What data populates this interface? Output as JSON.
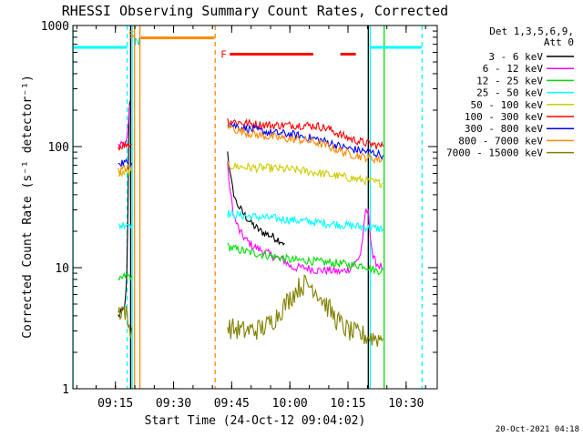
{
  "chart_data": {
    "type": "line",
    "title": "RHESSI Observing Summary Count Rates, Corrected",
    "xlabel": "Start Time (24-Oct-12 09:04:02)",
    "ylabel": "Corrected Count Rate (s⁻¹ detector⁻¹)",
    "yscale": "log",
    "xlim_minutes_after_start": [
      0,
      94
    ],
    "ylim": [
      1,
      1000
    ],
    "x_ticks": [
      {
        "label": "09:15",
        "t": 10.97
      },
      {
        "label": "09:30",
        "t": 25.97
      },
      {
        "label": "09:45",
        "t": 40.97
      },
      {
        "label": "10:00",
        "t": 55.97
      },
      {
        "label": "10:15",
        "t": 70.97
      },
      {
        "label": "10:30",
        "t": 85.97
      }
    ],
    "y_ticks": [
      {
        "label": "1",
        "v": 1
      },
      {
        "label": "10",
        "v": 10
      },
      {
        "label": "100",
        "v": 100
      },
      {
        "label": "1000",
        "v": 1000
      }
    ],
    "legend": {
      "placement": "right",
      "header": [
        "Det 1,3,5,6,9,",
        "Att 0"
      ],
      "entries": [
        {
          "label": "3 - 6 keV",
          "color": "#000000"
        },
        {
          "label": "6 - 12 keV",
          "color": "#ff00ff"
        },
        {
          "label": "12 - 25 keV",
          "color": "#00dd00"
        },
        {
          "label": "25 - 50 keV",
          "color": "#00ffff"
        },
        {
          "label": "50 - 100 keV",
          "color": "#cccc00"
        },
        {
          "label": "100 - 300 keV",
          "color": "#ff0000"
        },
        {
          "label": "300 - 800 keV",
          "color": "#0000ff"
        },
        {
          "label": "800 - 7000 keV",
          "color": "#ff8800"
        },
        {
          "label": "7000 - 15000 keV",
          "color": "#808000"
        }
      ]
    },
    "series": [
      {
        "name": "3 - 6 keV",
        "color": "#000000",
        "segments": [
          [
            [
              11.7,
              4.0
            ],
            [
              12.7,
              4.3
            ],
            [
              13.5,
              5.0
            ],
            [
              13.9,
              8
            ],
            [
              14.2,
              30
            ],
            [
              14.5,
              210
            ],
            [
              14.8,
              240
            ]
          ],
          [
            [
              39.9,
              95
            ],
            [
              40.5,
              60
            ],
            [
              41.2,
              45
            ],
            [
              42.1,
              35
            ],
            [
              43.6,
              29
            ],
            [
              45.2,
              25
            ],
            [
              46.8,
              22
            ],
            [
              48.4,
              20
            ],
            [
              50,
              19
            ],
            [
              51.6,
              18
            ],
            [
              53.2,
              17
            ],
            [
              54.6,
              16
            ]
          ]
        ]
      },
      {
        "name": "6 - 12 keV",
        "color": "#ff00ff",
        "segments": [
          [
            [
              11.7,
              100
            ],
            [
              12.7,
              105
            ],
            [
              13.5,
              105
            ],
            [
              14.0,
              120
            ],
            [
              14.3,
              160
            ],
            [
              14.6,
              220
            ]
          ],
          [
            [
              39.9,
              70
            ],
            [
              40.6,
              42
            ],
            [
              41.6,
              26
            ],
            [
              43.0,
              20
            ],
            [
              44.6,
              17
            ],
            [
              46.5,
              15
            ],
            [
              48.5,
              14
            ],
            [
              50.5,
              13
            ],
            [
              52.5,
              12
            ],
            [
              54.5,
              11.5
            ],
            [
              56.5,
              10
            ],
            [
              60,
              10
            ],
            [
              63,
              9.5
            ],
            [
              66,
              9.5
            ],
            [
              69.3,
              9.2
            ],
            [
              71.2,
              9.8
            ],
            [
              73,
              11
            ],
            [
              74.2,
              13
            ],
            [
              75,
              20
            ],
            [
              75.6,
              30
            ],
            [
              76.2,
              28
            ],
            [
              77.4,
              12
            ],
            [
              78.8,
              10.5
            ],
            [
              80,
              10
            ]
          ]
        ]
      },
      {
        "name": "12 - 25 keV",
        "color": "#00dd00",
        "segments": [
          [
            [
              11.7,
              7.5
            ],
            [
              12.7,
              8.2
            ],
            [
              13.5,
              8.5
            ],
            [
              14.5,
              8.6
            ],
            [
              15.2,
              8.6
            ]
          ],
          [
            [
              39.9,
              15
            ],
            [
              42,
              14.2
            ],
            [
              45,
              13.5
            ],
            [
              48,
              13
            ],
            [
              51,
              12.5
            ],
            [
              54,
              12
            ],
            [
              57,
              11.5
            ],
            [
              60,
              11.5
            ],
            [
              63,
              11.2
            ],
            [
              66,
              11
            ],
            [
              69,
              10.8
            ],
            [
              72,
              10.5
            ],
            [
              75,
              10.5
            ],
            [
              78,
              9.5
            ],
            [
              80,
              9.5
            ]
          ]
        ]
      },
      {
        "name": "25 - 50 keV",
        "color": "#00ffff",
        "segments": [
          [
            [
              11.7,
              22
            ],
            [
              12.7,
              22.5
            ],
            [
              13.5,
              23
            ],
            [
              14.5,
              23
            ],
            [
              15.2,
              23
            ]
          ],
          [
            [
              39.9,
              28
            ],
            [
              43,
              27
            ],
            [
              46,
              26.5
            ],
            [
              49,
              26
            ],
            [
              52,
              25.5
            ],
            [
              55,
              25
            ],
            [
              58,
              24.5
            ],
            [
              61,
              24
            ],
            [
              64,
              23.5
            ],
            [
              67,
              23
            ],
            [
              70,
              22.5
            ],
            [
              73,
              22
            ],
            [
              76,
              21.5
            ],
            [
              79,
              21
            ],
            [
              80,
              21
            ]
          ]
        ]
      },
      {
        "name": "50 - 100 keV",
        "color": "#cccc00",
        "segments": [
          [
            [
              11.7,
              57
            ],
            [
              12.7,
              60
            ],
            [
              13.5,
              61
            ],
            [
              14.5,
              62
            ],
            [
              15.2,
              62
            ]
          ],
          [
            [
              39.9,
              70
            ],
            [
              43,
              68
            ],
            [
              46,
              67
            ],
            [
              49,
              66.5
            ],
            [
              52,
              66
            ],
            [
              55,
              65
            ],
            [
              58,
              64
            ],
            [
              61,
              62
            ],
            [
              64,
              60
            ],
            [
              67,
              58
            ],
            [
              70,
              56
            ],
            [
              73,
              54
            ],
            [
              76,
              52
            ],
            [
              79,
              50
            ],
            [
              80,
              50
            ]
          ]
        ]
      },
      {
        "name": "100 - 300 keV",
        "color": "#ff0000",
        "segments": [
          [
            [
              11.7,
              100
            ],
            [
              12.7,
              102
            ],
            [
              13.5,
              104
            ],
            [
              14.5,
              105
            ],
            [
              15.2,
              105
            ]
          ],
          [
            [
              39.9,
              165
            ],
            [
              42,
              160
            ],
            [
              45,
              155
            ],
            [
              48,
              152
            ],
            [
              51,
              150
            ],
            [
              54,
              150
            ],
            [
              57,
              150
            ],
            [
              60,
              150
            ],
            [
              63,
              148
            ],
            [
              66,
              140
            ],
            [
              69,
              125
            ],
            [
              72,
              115
            ],
            [
              75,
              108
            ],
            [
              78,
              103
            ],
            [
              80,
              100
            ]
          ]
        ]
      },
      {
        "name": "300 - 800 keV",
        "color": "#0000ff",
        "segments": [
          [
            [
              11.7,
              75
            ],
            [
              12.7,
              74
            ],
            [
              13.5,
              73
            ],
            [
              14.5,
              73
            ],
            [
              15.2,
              73
            ]
          ],
          [
            [
              39.9,
              158
            ],
            [
              42,
              148
            ],
            [
              45,
              140
            ],
            [
              48,
              135
            ],
            [
              51,
              130
            ],
            [
              54,
              128
            ],
            [
              57,
              125
            ],
            [
              60,
              120
            ],
            [
              63,
              115
            ],
            [
              66,
              108
            ],
            [
              69,
              100
            ],
            [
              72,
              95
            ],
            [
              75,
              92
            ],
            [
              78,
              88
            ],
            [
              80,
              85
            ]
          ]
        ]
      },
      {
        "name": "800 - 7000 keV",
        "color": "#ff8800",
        "segments": [
          [
            [
              11.7,
              62
            ],
            [
              12.7,
              64
            ],
            [
              13.5,
              66
            ],
            [
              14.5,
              66
            ],
            [
              15.2,
              66
            ]
          ],
          [
            [
              39.9,
              150
            ],
            [
              42,
              138
            ],
            [
              45,
              130
            ],
            [
              48,
              124
            ],
            [
              51,
              120
            ],
            [
              54,
              117
            ],
            [
              57,
              115
            ],
            [
              60,
              112
            ],
            [
              63,
              108
            ],
            [
              66,
              100
            ],
            [
              69,
              92
            ],
            [
              72,
              86
            ],
            [
              75,
              82
            ],
            [
              78,
              79
            ],
            [
              80,
              78
            ]
          ]
        ]
      },
      {
        "name": "7000 - 15000 keV",
        "color": "#808000",
        "segments": [
          [
            [
              11.7,
              4.3
            ],
            [
              12.7,
              4.6
            ],
            [
              13.5,
              4.4
            ],
            [
              14.5,
              3.2
            ],
            [
              15.2,
              3.2
            ]
          ],
          [
            [
              39.9,
              3.2
            ],
            [
              44,
              3.0
            ],
            [
              48,
              3.1
            ],
            [
              50,
              3.3
            ],
            [
              52,
              3.8
            ],
            [
              54,
              4.6
            ],
            [
              56,
              5.6
            ],
            [
              58,
              6.8
            ],
            [
              60,
              7.3
            ],
            [
              62,
              7.0
            ],
            [
              64,
              5.7
            ],
            [
              66,
              4.6
            ],
            [
              68,
              3.7
            ],
            [
              70,
              3.2
            ],
            [
              72,
              2.9
            ],
            [
              76,
              2.7
            ],
            [
              80,
              2.6
            ]
          ]
        ]
      }
    ],
    "annotations": [
      {
        "label": "S",
        "color": "#ff8800",
        "t": 15.1,
        "v": 840
      },
      {
        "label": "N",
        "color": "#00cccc",
        "t": 16.6,
        "v": 740
      },
      {
        "label": "F",
        "color": "#ff0000",
        "t": 38.9,
        "v": 580
      }
    ],
    "state_bars": [
      {
        "color": "#00ffff",
        "t0": 0.0,
        "t1": 14.0,
        "v": 660
      },
      {
        "color": "#ff8800",
        "t0": 17.5,
        "t1": 36.5,
        "v": 790
      },
      {
        "color": "#ff0000",
        "t0": 40.5,
        "t1": 62.0,
        "v": 580
      },
      {
        "color": "#ff0000",
        "t0": 69.0,
        "t1": 73.0,
        "v": 580
      },
      {
        "color": "#00ffff",
        "t0": 76.5,
        "t1": 90.0,
        "v": 660
      }
    ],
    "vertical_lines": [
      {
        "color": "#00ffff",
        "t": 0.05,
        "style": "solid"
      },
      {
        "color": "#00ffff",
        "t": 14.0,
        "style": "dashed"
      },
      {
        "color": "#000000",
        "t": 14.9,
        "style": "solid"
      },
      {
        "color": "#00ffff",
        "t": 15.3,
        "style": "solid"
      },
      {
        "color": "#ff8800",
        "t": 15.9,
        "style": "solid"
      },
      {
        "color": "#ff8800",
        "t": 17.3,
        "style": "solid"
      },
      {
        "color": "#ff8800",
        "t": 36.7,
        "style": "dashed"
      },
      {
        "color": "#000000",
        "t": 76.2,
        "style": "solid"
      },
      {
        "color": "#00ffff",
        "t": 76.7,
        "style": "solid"
      },
      {
        "color": "#00dd00",
        "t": 80.3,
        "style": "solid"
      },
      {
        "color": "#00ffff",
        "t": 90.1,
        "style": "dashed"
      }
    ]
  },
  "footer": {
    "timestamp": "20-Oct-2021 04:18"
  }
}
